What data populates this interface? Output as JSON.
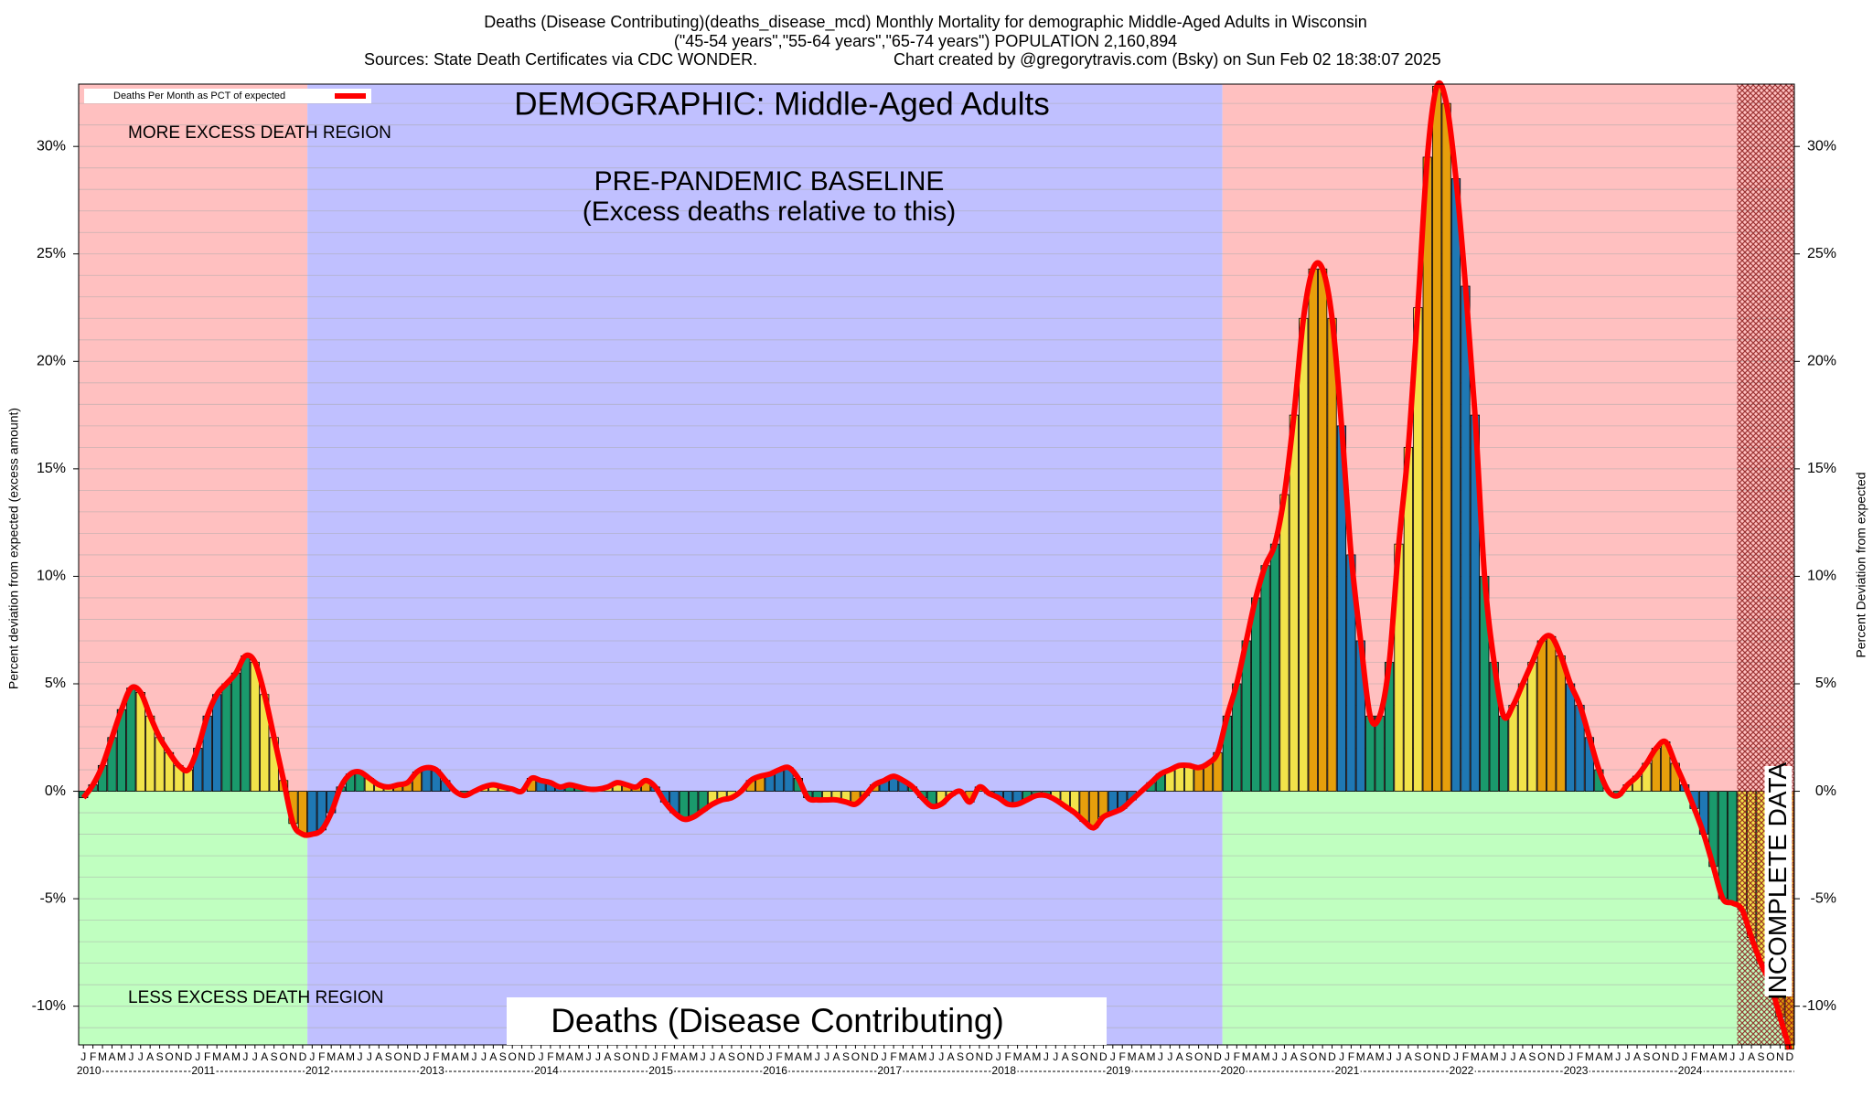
{
  "chart_data": {
    "type": "bar",
    "title_lines": [
      "Deaths (Disease Contributing)(deaths_disease_mcd) Monthly Mortality for demographic Middle-Aged Adults in Wisconsin",
      "(\"45-54 years\",\"55-64 years\",\"65-74 years\") POPULATION 2,160,894"
    ],
    "sources": "Sources: State Death Certificates via CDC WONDER.",
    "credit": "Chart created by @gregorytravis.com (Bsky) on Sun Feb 02 18:38:07 2025",
    "demographic_label": "DEMOGRAPHIC: Middle-Aged Adults",
    "baseline_label": [
      "PRE-PANDEMIC BASELINE",
      "(Excess deaths relative to this)"
    ],
    "more_label": "MORE EXCESS DEATH REGION",
    "less_label": "LESS EXCESS DEATH REGION",
    "bottom_label": "Deaths (Disease Contributing)",
    "incomplete_label": "INCOMPLETE DATA",
    "ylabel": "Percent deviation from expected (excess amount)",
    "y2label": "Percent Deviation from expected",
    "legend": "Deaths Per Month as PCT of expected",
    "legend_loc": "upper left",
    "line_color": "#ff0000",
    "baseline_period": [
      "2012-01",
      "2019-12"
    ],
    "incomplete_from": "2024-07",
    "region_colors": {
      "more": "#ffc0c0",
      "less": "#c0ffc0",
      "baseline": "#c0c0ff",
      "hatch": "#8b1a1a"
    },
    "month_labels": [
      "J",
      "F",
      "M",
      "A",
      "M",
      "J",
      "J",
      "A",
      "S",
      "O",
      "N",
      "D"
    ],
    "year_labels": [
      "2010",
      "2011",
      "2012",
      "2013",
      "2014",
      "2015",
      "2016",
      "2017",
      "2018",
      "2019",
      "2020",
      "2021",
      "2022",
      "2023",
      "2024"
    ],
    "x": [
      "2010-01",
      "2010-02",
      "2010-03",
      "2010-04",
      "2010-05",
      "2010-06",
      "2010-07",
      "2010-08",
      "2010-09",
      "2010-10",
      "2010-11",
      "2010-12",
      "2011-01",
      "2011-02",
      "2011-03",
      "2011-04",
      "2011-05",
      "2011-06",
      "2011-07",
      "2011-08",
      "2011-09",
      "2011-10",
      "2011-11",
      "2011-12",
      "2012-01",
      "2012-02",
      "2012-03",
      "2012-04",
      "2012-05",
      "2012-06",
      "2012-07",
      "2012-08",
      "2012-09",
      "2012-10",
      "2012-11",
      "2012-12",
      "2013-01",
      "2013-02",
      "2013-03",
      "2013-04",
      "2013-05",
      "2013-06",
      "2013-07",
      "2013-08",
      "2013-09",
      "2013-10",
      "2013-11",
      "2013-12",
      "2014-01",
      "2014-02",
      "2014-03",
      "2014-04",
      "2014-05",
      "2014-06",
      "2014-07",
      "2014-08",
      "2014-09",
      "2014-10",
      "2014-11",
      "2014-12",
      "2015-01",
      "2015-02",
      "2015-03",
      "2015-04",
      "2015-05",
      "2015-06",
      "2015-07",
      "2015-08",
      "2015-09",
      "2015-10",
      "2015-11",
      "2015-12",
      "2016-01",
      "2016-02",
      "2016-03",
      "2016-04",
      "2016-05",
      "2016-06",
      "2016-07",
      "2016-08",
      "2016-09",
      "2016-10",
      "2016-11",
      "2016-12",
      "2017-01",
      "2017-02",
      "2017-03",
      "2017-04",
      "2017-05",
      "2017-06",
      "2017-07",
      "2017-08",
      "2017-09",
      "2017-10",
      "2017-11",
      "2017-12",
      "2018-01",
      "2018-02",
      "2018-03",
      "2018-04",
      "2018-05",
      "2018-06",
      "2018-07",
      "2018-08",
      "2018-09",
      "2018-10",
      "2018-11",
      "2018-12",
      "2019-01",
      "2019-02",
      "2019-03",
      "2019-04",
      "2019-05",
      "2019-06",
      "2019-07",
      "2019-08",
      "2019-09",
      "2019-10",
      "2019-11",
      "2019-12",
      "2020-01",
      "2020-02",
      "2020-03",
      "2020-04",
      "2020-05",
      "2020-06",
      "2020-07",
      "2020-08",
      "2020-09",
      "2020-10",
      "2020-11",
      "2020-12",
      "2021-01",
      "2021-02",
      "2021-03",
      "2021-04",
      "2021-05",
      "2021-06",
      "2021-07",
      "2021-08",
      "2021-09",
      "2021-10",
      "2021-11",
      "2021-12",
      "2022-01",
      "2022-02",
      "2022-03",
      "2022-04",
      "2022-05",
      "2022-06",
      "2022-07",
      "2022-08",
      "2022-09",
      "2022-10",
      "2022-11",
      "2022-12",
      "2023-01",
      "2023-02",
      "2023-03",
      "2023-04",
      "2023-05",
      "2023-06",
      "2023-07",
      "2023-08",
      "2023-09",
      "2023-10",
      "2023-11",
      "2023-12",
      "2024-01",
      "2024-02",
      "2024-03",
      "2024-04",
      "2024-05",
      "2024-06",
      "2024-07",
      "2024-08",
      "2024-09",
      "2024-10",
      "2024-11",
      "2024-12"
    ],
    "values": [
      -0.3,
      0.3,
      1.2,
      2.5,
      3.8,
      4.8,
      4.6,
      3.5,
      2.5,
      1.8,
      1.2,
      1.0,
      2.0,
      3.5,
      4.5,
      5.0,
      5.5,
      6.3,
      6.0,
      4.5,
      2.5,
      0.5,
      -1.5,
      -2.0,
      -2.0,
      -1.8,
      -1.0,
      0.2,
      0.8,
      0.9,
      0.6,
      0.3,
      0.2,
      0.3,
      0.4,
      0.9,
      1.1,
      1.0,
      0.5,
      0.0,
      -0.2,
      0.0,
      0.2,
      0.3,
      0.2,
      0.1,
      0.0,
      0.6,
      0.5,
      0.4,
      0.2,
      0.3,
      0.2,
      0.1,
      0.1,
      0.2,
      0.4,
      0.3,
      0.2,
      0.5,
      0.2,
      -0.5,
      -1.0,
      -1.3,
      -1.2,
      -0.9,
      -0.6,
      -0.4,
      -0.3,
      0.0,
      0.5,
      0.7,
      0.8,
      1.0,
      1.1,
      0.6,
      -0.3,
      -0.4,
      -0.4,
      -0.4,
      -0.5,
      -0.6,
      -0.2,
      0.3,
      0.5,
      0.7,
      0.5,
      0.2,
      -0.3,
      -0.7,
      -0.6,
      -0.2,
      0.0,
      -0.5,
      0.2,
      -0.1,
      -0.3,
      -0.6,
      -0.6,
      -0.4,
      -0.2,
      -0.2,
      -0.4,
      -0.7,
      -1.0,
      -1.4,
      -1.7,
      -1.2,
      -1.0,
      -0.8,
      -0.4,
      0.0,
      0.4,
      0.8,
      1.0,
      1.2,
      1.2,
      1.1,
      1.3,
      1.8,
      3.5,
      5.0,
      7.0,
      9.0,
      10.5,
      11.5,
      13.8,
      17.5,
      22.0,
      24.3,
      24.3,
      22.0,
      17.0,
      11.0,
      7.0,
      3.5,
      3.5,
      6.0,
      11.5,
      16.0,
      22.5,
      29.5,
      32.8,
      32.0,
      28.5,
      23.5,
      17.5,
      10.0,
      6.0,
      3.5,
      4.0,
      5.0,
      6.0,
      7.0,
      7.2,
      6.3,
      5.0,
      4.0,
      2.5,
      1.0,
      0.0,
      -0.2,
      0.3,
      0.7,
      1.3,
      2.0,
      2.3,
      1.3,
      0.3,
      -0.8,
      -2.0,
      -3.5,
      -5.0,
      -5.2,
      -5.5,
      -6.8,
      -8.0,
      -9.0,
      -10.5,
      -12.0
    ],
    "colors": [
      "#1a9a6c",
      "#1a9a6c",
      "#1a9a6c",
      "#1a9a6c",
      "#1a9a6c",
      "#1a9a6c",
      "#f2e34a",
      "#f2e34a",
      "#f2e34a",
      "#f2e34a",
      "#f2e34a",
      "#f2e34a",
      "#1f78b4",
      "#1f78b4",
      "#1f78b4",
      "#1a9a6c",
      "#1a9a6c",
      "#1a9a6c",
      "#f2e34a",
      "#f2e34a",
      "#f2e34a",
      "#e69f0c",
      "#e69f0c",
      "#e69f0c",
      "#1f78b4",
      "#1f78b4",
      "#1f78b4",
      "#1a9a6c",
      "#1a9a6c",
      "#1a9a6c",
      "#f2e34a",
      "#f2e34a",
      "#f2e34a",
      "#e69f0c",
      "#e69f0c",
      "#e69f0c",
      "#1f78b4",
      "#1f78b4",
      "#1f78b4",
      "#1a9a6c",
      "#1a9a6c",
      "#1a9a6c",
      "#f2e34a",
      "#f2e34a",
      "#f2e34a",
      "#e69f0c",
      "#e69f0c",
      "#e69f0c",
      "#1f78b4",
      "#1f78b4",
      "#1f78b4",
      "#1a9a6c",
      "#1a9a6c",
      "#1a9a6c",
      "#f2e34a",
      "#f2e34a",
      "#f2e34a",
      "#e69f0c",
      "#e69f0c",
      "#e69f0c",
      "#1f78b4",
      "#1f78b4",
      "#1f78b4",
      "#1a9a6c",
      "#1a9a6c",
      "#1a9a6c",
      "#f2e34a",
      "#f2e34a",
      "#f2e34a",
      "#e69f0c",
      "#e69f0c",
      "#e69f0c",
      "#1f78b4",
      "#1f78b4",
      "#1f78b4",
      "#1a9a6c",
      "#1a9a6c",
      "#1a9a6c",
      "#f2e34a",
      "#f2e34a",
      "#f2e34a",
      "#e69f0c",
      "#e69f0c",
      "#e69f0c",
      "#1f78b4",
      "#1f78b4",
      "#1f78b4",
      "#1a9a6c",
      "#1a9a6c",
      "#1a9a6c",
      "#f2e34a",
      "#f2e34a",
      "#f2e34a",
      "#e69f0c",
      "#e69f0c",
      "#e69f0c",
      "#1f78b4",
      "#1f78b4",
      "#1f78b4",
      "#1a9a6c",
      "#1a9a6c",
      "#1a9a6c",
      "#f2e34a",
      "#f2e34a",
      "#f2e34a",
      "#e69f0c",
      "#e69f0c",
      "#e69f0c",
      "#1f78b4",
      "#1f78b4",
      "#1f78b4",
      "#1a9a6c",
      "#1a9a6c",
      "#1a9a6c",
      "#f2e34a",
      "#f2e34a",
      "#f2e34a",
      "#e69f0c",
      "#e69f0c",
      "#e69f0c",
      "#1a9a6c",
      "#1a9a6c",
      "#1a9a6c",
      "#1a9a6c",
      "#1a9a6c",
      "#1a9a6c",
      "#f2e34a",
      "#f2e34a",
      "#f2e34a",
      "#e69f0c",
      "#e69f0c",
      "#e69f0c",
      "#1f78b4",
      "#1f78b4",
      "#1f78b4",
      "#1a9a6c",
      "#1a9a6c",
      "#1a9a6c",
      "#f2e34a",
      "#f2e34a",
      "#f2e34a",
      "#e69f0c",
      "#e69f0c",
      "#e69f0c",
      "#1f78b4",
      "#1f78b4",
      "#1f78b4",
      "#1a9a6c",
      "#1a9a6c",
      "#1a9a6c",
      "#f2e34a",
      "#f2e34a",
      "#f2e34a",
      "#e69f0c",
      "#e69f0c",
      "#e69f0c",
      "#1f78b4",
      "#1f78b4",
      "#1f78b4",
      "#1a9a6c",
      "#1a9a6c",
      "#1a9a6c",
      "#f2e34a",
      "#f2e34a",
      "#f2e34a",
      "#e69f0c",
      "#e69f0c",
      "#e69f0c",
      "#1f78b4",
      "#1f78b4",
      "#1f78b4",
      "#1a9a6c",
      "#1a9a6c",
      "#1a9a6c",
      "#f2e34a",
      "#f2e34a",
      "#f2e34a",
      "#e69f0c",
      "#e69f0c",
      "#e69f0c"
    ],
    "ylim": [
      -11.8,
      32.9
    ],
    "yticks": [
      {
        "value": -10,
        "label": "-10%"
      },
      {
        "value": -5,
        "label": "-5%"
      },
      {
        "value": 0,
        "label": "0%"
      },
      {
        "value": 5,
        "label": "5%"
      },
      {
        "value": 10,
        "label": "10%"
      },
      {
        "value": 15,
        "label": "15%"
      },
      {
        "value": 20,
        "label": "20%"
      },
      {
        "value": 25,
        "label": "25%"
      },
      {
        "value": 30,
        "label": "30%"
      }
    ],
    "minor_grid_step": 1,
    "grid": true
  }
}
